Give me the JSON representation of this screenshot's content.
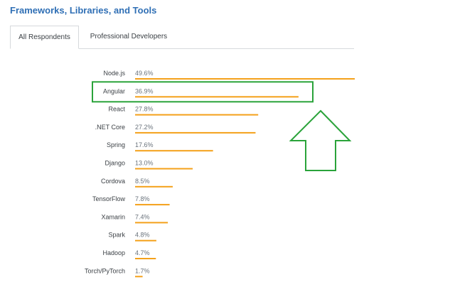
{
  "header": {
    "title": "Frameworks, Libraries, and Tools"
  },
  "tabs": [
    {
      "label": "All Respondents",
      "active": true
    },
    {
      "label": "Professional Developers",
      "active": false
    }
  ],
  "colors": {
    "bar": "#f4a11a",
    "highlight": "#2aa33a",
    "title": "#2f6fb5"
  },
  "annotation": {
    "highlighted_category": "Angular",
    "arrow": "up-arrow-icon"
  },
  "chart_data": {
    "type": "bar",
    "orientation": "horizontal",
    "categories": [
      "Node.js",
      "Angular",
      "React",
      ".NET Core",
      "Spring",
      "Django",
      "Cordova",
      "TensorFlow",
      "Xamarin",
      "Spark",
      "Hadoop",
      "Torch/PyTorch"
    ],
    "values": [
      49.6,
      36.9,
      27.8,
      27.2,
      17.6,
      13.0,
      8.5,
      7.8,
      7.4,
      4.8,
      4.7,
      1.7
    ],
    "value_labels": [
      "49.6%",
      "36.9%",
      "27.8%",
      "27.2%",
      "17.6%",
      "13.0%",
      "8.5%",
      "7.8%",
      "7.4%",
      "4.8%",
      "4.7%",
      "1.7%"
    ],
    "unit": "%",
    "title": "",
    "xlabel": "",
    "ylabel": "",
    "xlim": [
      0,
      49.6
    ],
    "grid": false,
    "legend": "none"
  }
}
